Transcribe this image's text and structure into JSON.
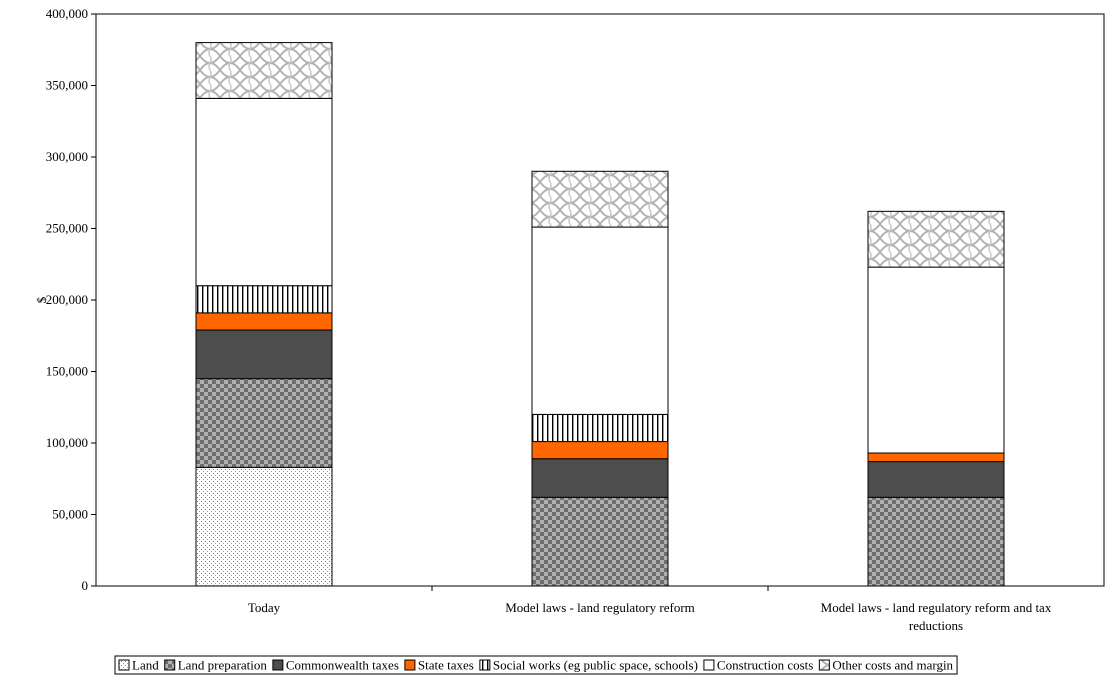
{
  "chart_data": {
    "type": "bar",
    "stacked": true,
    "ylabel": "$",
    "xlabel": "",
    "ylim": [
      0,
      400000
    ],
    "yticks": [
      0,
      50000,
      100000,
      150000,
      200000,
      250000,
      300000,
      350000,
      400000
    ],
    "ytick_labels": [
      "0",
      "50,000",
      "100,000",
      "150,000",
      "200,000",
      "250,000",
      "300,000",
      "350,000",
      "400,000"
    ],
    "categories": [
      [
        "Today"
      ],
      [
        "Model laws - land regulatory reform"
      ],
      [
        "Model laws - land regulatory reform and tax",
        "reductions"
      ]
    ],
    "legend_position": "bottom",
    "grid": false,
    "series": [
      {
        "name": "Land",
        "pattern": "dots",
        "color": "#ffffff",
        "values": [
          83000,
          0,
          0
        ]
      },
      {
        "name": "Land preparation",
        "pattern": "checker",
        "color": "#8c8c8c",
        "values": [
          62000,
          62000,
          62000
        ]
      },
      {
        "name": "Commonwealth taxes",
        "pattern": "solid",
        "color": "#4d4d4d",
        "values": [
          34000,
          27000,
          25000
        ]
      },
      {
        "name": "State taxes",
        "pattern": "solid",
        "color": "#ff6600",
        "values": [
          12000,
          12000,
          6000
        ]
      },
      {
        "name": "Social works (eg public space, schools)",
        "pattern": "vlines",
        "color": "#ffffff",
        "values": [
          19000,
          19000,
          0
        ]
      },
      {
        "name": "Construction costs",
        "pattern": "solid",
        "color": "#ffffff",
        "values": [
          131000,
          131000,
          130000
        ]
      },
      {
        "name": "Other costs and margin",
        "pattern": "weave",
        "color": "#ffffff",
        "values": [
          39000,
          39000,
          39000
        ]
      }
    ]
  }
}
